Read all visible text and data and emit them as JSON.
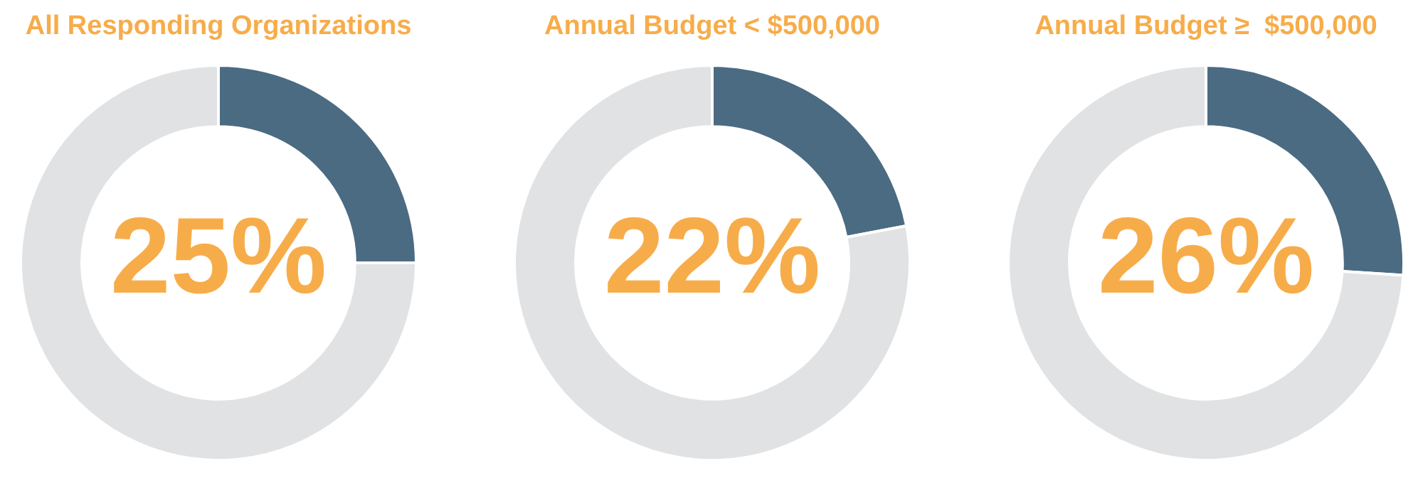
{
  "chart_data": [
    {
      "type": "donut",
      "title": "All Responding Organizations",
      "categories": [
        null,
        null
      ],
      "values": [
        25,
        75
      ],
      "colors": [
        "#4a6b82",
        "#e1e2e4"
      ],
      "annotations": [
        "25%"
      ],
      "legend": false
    },
    {
      "type": "donut",
      "title": "Annual Budget < $500,000",
      "categories": [
        null,
        null
      ],
      "values": [
        22,
        78
      ],
      "colors": [
        "#4a6b82",
        "#e1e2e4"
      ],
      "annotations": [
        "22%"
      ],
      "legend": false
    },
    {
      "type": "donut",
      "title": "Annual Budget ≥  $500,000",
      "categories": [
        null,
        null
      ],
      "values": [
        26,
        74
      ],
      "colors": [
        "#4a6b82",
        "#e1e2e4"
      ],
      "annotations": [
        "26%"
      ],
      "legend": false
    }
  ]
}
